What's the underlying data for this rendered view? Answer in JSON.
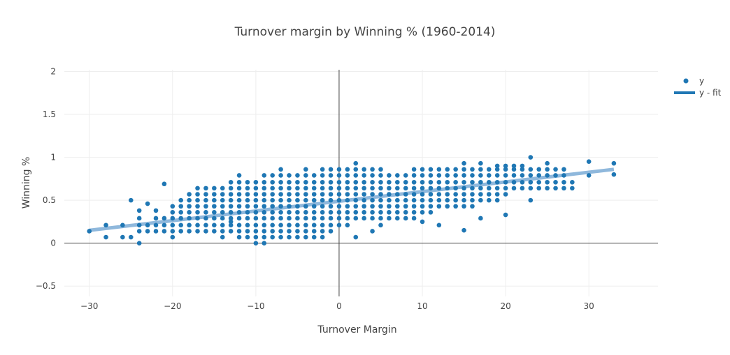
{
  "chart_data": {
    "type": "scatter",
    "title": "Turnover margin by Winning % (1960-2014)",
    "xlabel": "Turnover Margin",
    "ylabel": "Winning %",
    "xlim": [
      -33,
      38.3
    ],
    "ylim": [
      -0.62,
      2.02
    ],
    "x_ticks": [
      -30,
      -20,
      -10,
      0,
      10,
      20,
      30
    ],
    "x_tick_labels": [
      "−30",
      "−20",
      "−10",
      "0",
      "10",
      "20",
      "30"
    ],
    "y_ticks": [
      -0.5,
      0,
      0.5,
      1,
      1.5,
      2
    ],
    "y_tick_labels": [
      "−0.5",
      "0",
      "0.5",
      "1",
      "1.5",
      "2"
    ],
    "grid": true,
    "zero_lines": true,
    "legend_position": "top-right",
    "colors": {
      "points": "#1f77b4",
      "fit_line": "#8fb8dc",
      "fit_legend": "#1f77b4",
      "grid": "#eeeeee",
      "zero_line": "#444444"
    },
    "series": [
      {
        "name": "y",
        "mode": "markers",
        "points_by_x": [
          [
            -30,
            [
              0.14
            ]
          ],
          [
            -28,
            [
              0.07,
              0.21
            ]
          ],
          [
            -26,
            [
              0.07,
              0.21
            ]
          ],
          [
            -25,
            [
              0.07,
              0.5
            ]
          ],
          [
            -24,
            [
              0.0,
              0.14,
              0.21,
              0.29,
              0.38
            ]
          ],
          [
            -23,
            [
              0.14,
              0.21,
              0.46
            ]
          ],
          [
            -22,
            [
              0.14,
              0.21,
              0.29,
              0.38
            ]
          ],
          [
            -21,
            [
              0.14,
              0.21,
              0.29,
              0.69
            ]
          ],
          [
            -20,
            [
              0.07,
              0.14,
              0.21,
              0.29,
              0.36,
              0.43
            ]
          ],
          [
            -19,
            [
              0.14,
              0.21,
              0.29,
              0.36,
              0.43,
              0.5
            ]
          ],
          [
            -18,
            [
              0.14,
              0.21,
              0.29,
              0.36,
              0.43,
              0.5,
              0.57
            ]
          ],
          [
            -17,
            [
              0.14,
              0.21,
              0.29,
              0.36,
              0.43,
              0.5,
              0.57,
              0.64
            ]
          ],
          [
            -16,
            [
              0.14,
              0.21,
              0.29,
              0.36,
              0.43,
              0.5,
              0.57,
              0.64
            ]
          ],
          [
            -15,
            [
              0.14,
              0.21,
              0.29,
              0.36,
              0.43,
              0.5,
              0.57,
              0.64
            ]
          ],
          [
            -14,
            [
              0.07,
              0.14,
              0.21,
              0.29,
              0.36,
              0.43,
              0.5,
              0.57,
              0.64
            ]
          ],
          [
            -13,
            [
              0.14,
              0.21,
              0.25,
              0.29,
              0.36,
              0.43,
              0.5,
              0.57,
              0.64,
              0.71
            ]
          ],
          [
            -12,
            [
              0.07,
              0.14,
              0.21,
              0.29,
              0.36,
              0.43,
              0.5,
              0.57,
              0.64,
              0.71,
              0.79
            ]
          ],
          [
            -11,
            [
              0.07,
              0.14,
              0.21,
              0.29,
              0.36,
              0.43,
              0.5,
              0.57,
              0.64,
              0.71
            ]
          ],
          [
            -10,
            [
              0.0,
              0.07,
              0.14,
              0.21,
              0.29,
              0.36,
              0.43,
              0.5,
              0.57,
              0.64,
              0.71
            ]
          ],
          [
            -9,
            [
              0.0,
              0.07,
              0.14,
              0.21,
              0.29,
              0.36,
              0.43,
              0.5,
              0.57,
              0.64,
              0.71,
              0.79
            ]
          ],
          [
            -8,
            [
              0.07,
              0.14,
              0.21,
              0.29,
              0.36,
              0.43,
              0.5,
              0.57,
              0.64,
              0.71,
              0.79
            ]
          ],
          [
            -7,
            [
              0.07,
              0.14,
              0.21,
              0.29,
              0.36,
              0.43,
              0.5,
              0.57,
              0.64,
              0.71,
              0.79,
              0.86
            ]
          ],
          [
            -6,
            [
              0.07,
              0.14,
              0.21,
              0.29,
              0.36,
              0.43,
              0.5,
              0.57,
              0.64,
              0.71,
              0.79
            ]
          ],
          [
            -5,
            [
              0.07,
              0.14,
              0.21,
              0.29,
              0.36,
              0.43,
              0.5,
              0.57,
              0.64,
              0.71,
              0.79
            ]
          ],
          [
            -4,
            [
              0.07,
              0.14,
              0.21,
              0.29,
              0.36,
              0.43,
              0.5,
              0.57,
              0.64,
              0.71,
              0.79,
              0.86
            ]
          ],
          [
            -3,
            [
              0.07,
              0.14,
              0.21,
              0.29,
              0.36,
              0.43,
              0.5,
              0.57,
              0.64,
              0.71,
              0.79
            ]
          ],
          [
            -2,
            [
              0.07,
              0.14,
              0.21,
              0.29,
              0.36,
              0.43,
              0.5,
              0.57,
              0.64,
              0.71,
              0.79,
              0.86
            ]
          ],
          [
            -1,
            [
              0.14,
              0.21,
              0.29,
              0.36,
              0.43,
              0.5,
              0.57,
              0.64,
              0.71,
              0.79,
              0.86
            ]
          ],
          [
            0,
            [
              0.21,
              0.29,
              0.36,
              0.43,
              0.5,
              0.57,
              0.64,
              0.71,
              0.79,
              0.86
            ]
          ],
          [
            1,
            [
              0.21,
              0.29,
              0.36,
              0.43,
              0.5,
              0.57,
              0.64,
              0.71,
              0.79,
              0.86
            ]
          ],
          [
            2,
            [
              0.07,
              0.29,
              0.36,
              0.43,
              0.5,
              0.57,
              0.64,
              0.71,
              0.79,
              0.86,
              0.93
            ]
          ],
          [
            3,
            [
              0.29,
              0.36,
              0.43,
              0.5,
              0.57,
              0.64,
              0.71,
              0.79,
              0.86
            ]
          ],
          [
            4,
            [
              0.14,
              0.29,
              0.36,
              0.43,
              0.5,
              0.57,
              0.64,
              0.71,
              0.79,
              0.86
            ]
          ],
          [
            5,
            [
              0.21,
              0.29,
              0.36,
              0.43,
              0.5,
              0.57,
              0.64,
              0.71,
              0.79,
              0.86
            ]
          ],
          [
            6,
            [
              0.29,
              0.36,
              0.43,
              0.5,
              0.57,
              0.64,
              0.71,
              0.79
            ]
          ],
          [
            7,
            [
              0.29,
              0.36,
              0.43,
              0.5,
              0.57,
              0.64,
              0.71,
              0.79
            ]
          ],
          [
            8,
            [
              0.29,
              0.36,
              0.43,
              0.5,
              0.57,
              0.64,
              0.71,
              0.79
            ]
          ],
          [
            9,
            [
              0.29,
              0.36,
              0.43,
              0.5,
              0.57,
              0.64,
              0.71,
              0.79,
              0.86
            ]
          ],
          [
            10,
            [
              0.25,
              0.36,
              0.43,
              0.5,
              0.57,
              0.64,
              0.71,
              0.79,
              0.86
            ]
          ],
          [
            11,
            [
              0.36,
              0.43,
              0.5,
              0.57,
              0.64,
              0.71,
              0.79,
              0.86
            ]
          ],
          [
            12,
            [
              0.21,
              0.43,
              0.5,
              0.57,
              0.64,
              0.71,
              0.79,
              0.86
            ]
          ],
          [
            13,
            [
              0.43,
              0.5,
              0.57,
              0.64,
              0.71,
              0.79,
              0.86
            ]
          ],
          [
            14,
            [
              0.43,
              0.5,
              0.57,
              0.64,
              0.71,
              0.79,
              0.86
            ]
          ],
          [
            15,
            [
              0.15,
              0.43,
              0.5,
              0.57,
              0.64,
              0.71,
              0.79,
              0.86,
              0.93
            ]
          ],
          [
            16,
            [
              0.43,
              0.5,
              0.57,
              0.64,
              0.71,
              0.79,
              0.86
            ]
          ],
          [
            17,
            [
              0.29,
              0.5,
              0.57,
              0.64,
              0.71,
              0.79,
              0.86,
              0.93
            ]
          ],
          [
            18,
            [
              0.5,
              0.57,
              0.64,
              0.71,
              0.79,
              0.86
            ]
          ],
          [
            19,
            [
              0.5,
              0.57,
              0.64,
              0.71,
              0.79,
              0.86,
              0.9
            ]
          ],
          [
            20,
            [
              0.33,
              0.57,
              0.64,
              0.71,
              0.79,
              0.86,
              0.9
            ]
          ],
          [
            21,
            [
              0.64,
              0.71,
              0.79,
              0.86,
              0.9
            ]
          ],
          [
            22,
            [
              0.64,
              0.71,
              0.79,
              0.86,
              0.9
            ]
          ],
          [
            23,
            [
              0.5,
              0.64,
              0.71,
              0.79,
              0.86,
              1.0
            ]
          ],
          [
            24,
            [
              0.64,
              0.71,
              0.79,
              0.86
            ]
          ],
          [
            25,
            [
              0.64,
              0.71,
              0.79,
              0.86,
              0.93
            ]
          ],
          [
            26,
            [
              0.64,
              0.71,
              0.79,
              0.86
            ]
          ],
          [
            27,
            [
              0.64,
              0.71,
              0.79,
              0.86
            ]
          ],
          [
            28,
            [
              0.64,
              0.71
            ]
          ],
          [
            30,
            [
              0.79,
              0.95
            ]
          ],
          [
            33,
            [
              0.8,
              0.93
            ]
          ]
        ]
      },
      {
        "name": "y - fit",
        "mode": "lines",
        "x": [
          -30,
          33
        ],
        "y": [
          0.15,
          0.86
        ]
      }
    ]
  }
}
